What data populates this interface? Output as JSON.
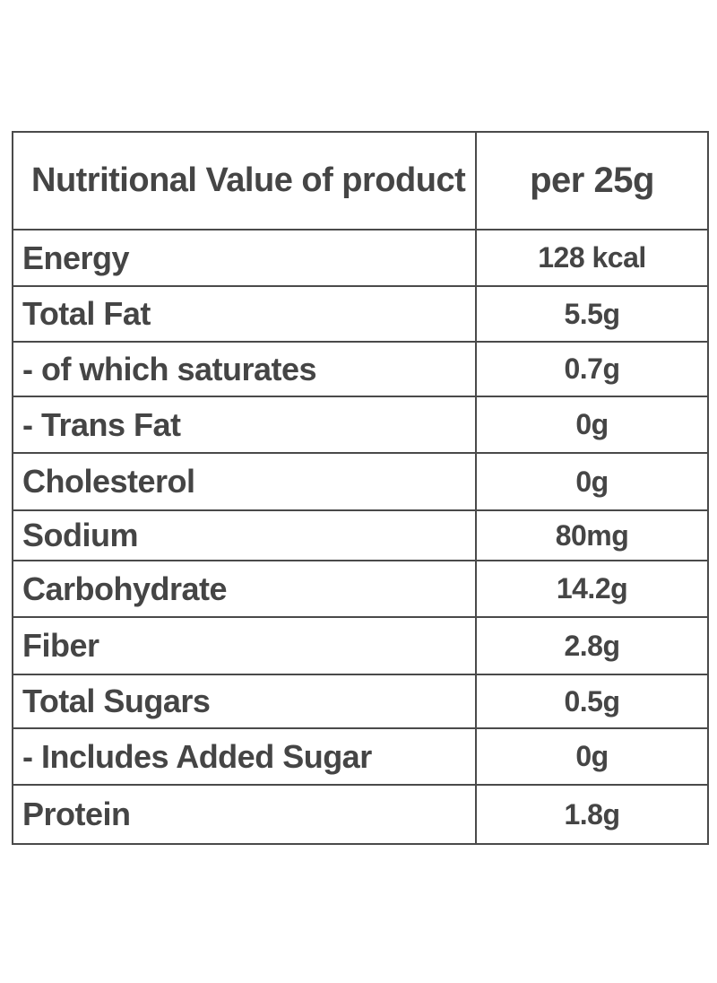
{
  "table": {
    "header": {
      "label": "Nutritional Value of product",
      "value": "per 25g"
    },
    "rows": [
      {
        "label": "Energy",
        "value": "128 kcal"
      },
      {
        "label": "Total Fat",
        "value": "5.5g"
      },
      {
        "label": "- of which saturates",
        "value": "0.7g"
      },
      {
        "label": "- Trans Fat",
        "value": "0g"
      },
      {
        "label": "Cholesterol",
        "value": "0g"
      },
      {
        "label": "Sodium",
        "value": "80mg"
      },
      {
        "label": "Carbohydrate",
        "value": "14.2g"
      },
      {
        "label": "Fiber",
        "value": "2.8g"
      },
      {
        "label": "Total Sugars",
        "value": "0.5g"
      },
      {
        "label": "- Includes Added Sugar",
        "value": "0g"
      },
      {
        "label": "Protein",
        "value": "1.8g"
      }
    ]
  }
}
